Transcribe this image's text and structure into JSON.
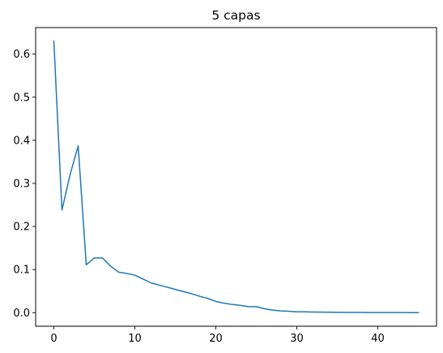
{
  "chart_data": {
    "type": "line",
    "title": "5 capas",
    "xlabel": "",
    "ylabel": "",
    "xlim": [
      -2.25,
      47.25
    ],
    "ylim": [
      -0.0315,
      0.6615
    ],
    "grid": false,
    "x_ticks": [
      0,
      10,
      20,
      30,
      40
    ],
    "y_ticks": [
      0.0,
      0.1,
      0.2,
      0.3,
      0.4,
      0.5,
      0.6
    ],
    "x_tick_labels": [
      "0",
      "10",
      "20",
      "30",
      "40"
    ],
    "y_tick_labels": [
      "0.0",
      "0.1",
      "0.2",
      "0.3",
      "0.4",
      "0.5",
      "0.6"
    ],
    "series": [
      {
        "color": "#1f77b4",
        "x": [
          0,
          1,
          2,
          3,
          4,
          5,
          6,
          7,
          8,
          9,
          10,
          11,
          12,
          13,
          14,
          15,
          16,
          17,
          18,
          19,
          20,
          21,
          22,
          23,
          24,
          25,
          26,
          27,
          28,
          29,
          30,
          31,
          32,
          33,
          34,
          35,
          36,
          37,
          38,
          39,
          40,
          41,
          42,
          43,
          44,
          45
        ],
        "y": [
          0.63,
          0.238,
          0.32,
          0.387,
          0.111,
          0.127,
          0.127,
          0.108,
          0.094,
          0.091,
          0.087,
          0.078,
          0.069,
          0.064,
          0.059,
          0.054,
          0.049,
          0.044,
          0.038,
          0.033,
          0.026,
          0.022,
          0.019,
          0.017,
          0.014,
          0.014,
          0.009,
          0.006,
          0.004,
          0.003,
          0.002,
          0.002,
          0.0015,
          0.0012,
          0.001,
          0.0008,
          0.0006,
          0.0005,
          0.0004,
          0.0003,
          0.0003,
          0.0002,
          0.0002,
          0.0002,
          0.0001,
          0.0001
        ]
      }
    ]
  }
}
